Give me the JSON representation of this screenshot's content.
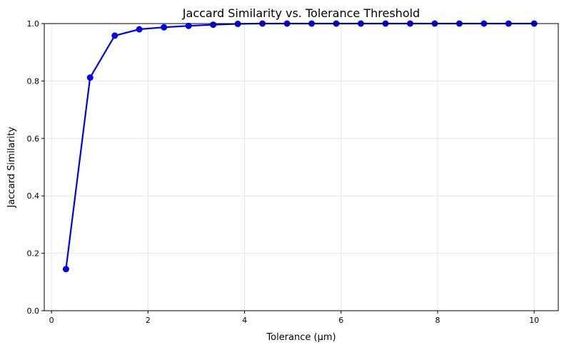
{
  "chart_data": {
    "type": "line",
    "title": "Jaccard Similarity vs. Tolerance Threshold",
    "xlabel": "Tolerance (μm)",
    "ylabel": "Jaccard Similarity",
    "xlim": [
      -0.15,
      10.5
    ],
    "ylim": [
      0,
      1
    ],
    "xticks": [
      0,
      2,
      4,
      6,
      8,
      10
    ],
    "yticks": [
      0.0,
      0.2,
      0.4,
      0.6,
      0.8,
      1.0
    ],
    "xtick_labels": [
      "0",
      "2",
      "4",
      "6",
      "8",
      "10"
    ],
    "ytick_labels": [
      "0.0",
      "0.2",
      "0.4",
      "0.6",
      "0.8",
      "1.0"
    ],
    "grid": true,
    "series": [
      {
        "color": "#0000ee",
        "marker": "circle",
        "x": [
          0.3,
          0.8,
          1.31,
          1.82,
          2.33,
          2.84,
          3.35,
          3.86,
          4.37,
          4.88,
          5.39,
          5.9,
          6.41,
          6.92,
          7.43,
          7.94,
          8.45,
          8.96,
          9.47,
          10.0
        ],
        "y": [
          0.145,
          0.812,
          0.958,
          0.98,
          0.987,
          0.992,
          0.996,
          0.999,
          1.0,
          1.0,
          1.0,
          1.0,
          1.0,
          1.0,
          1.0,
          1.0,
          1.0,
          1.0,
          1.0,
          1.0
        ]
      }
    ]
  }
}
